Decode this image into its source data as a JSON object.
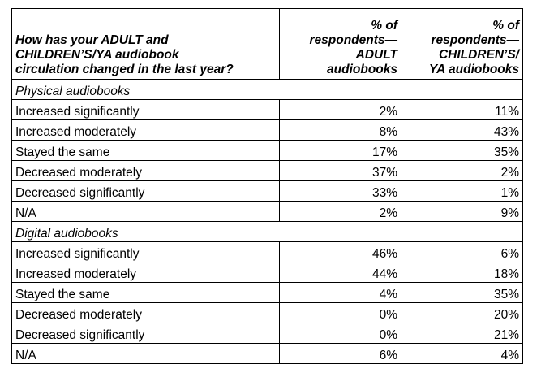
{
  "table": {
    "header": {
      "question_lines": [
        "How has your ADULT and",
        "CHILDREN’S/YA audiobook",
        "circulation changed in the last year?"
      ],
      "adult_lines": [
        "% of",
        "respondents—",
        "ADULT",
        "audiobooks"
      ],
      "children_lines": [
        "% of",
        "respondents—",
        "CHILDREN’S/",
        "YA audiobooks"
      ]
    },
    "sections": [
      {
        "title": "Physical audiobooks",
        "rows": [
          {
            "label": "Increased significantly",
            "adult": "2%",
            "children": "11%"
          },
          {
            "label": "Increased moderately",
            "adult": "8%",
            "children": "43%"
          },
          {
            "label": "Stayed the same",
            "adult": "17%",
            "children": "35%"
          },
          {
            "label": "Decreased moderately",
            "adult": "37%",
            "children": "2%"
          },
          {
            "label": "Decreased significantly",
            "adult": "33%",
            "children": "1%"
          },
          {
            "label": "N/A",
            "adult": "2%",
            "children": "9%"
          }
        ]
      },
      {
        "title": "Digital audiobooks",
        "rows": [
          {
            "label": "Increased significantly",
            "adult": "46%",
            "children": "6%"
          },
          {
            "label": "Increased moderately",
            "adult": "44%",
            "children": "18%"
          },
          {
            "label": "Stayed the same",
            "adult": "4%",
            "children": "35%"
          },
          {
            "label": "Decreased moderately",
            "adult": "0%",
            "children": "20%"
          },
          {
            "label": "Decreased significantly",
            "adult": "0%",
            "children": "21%"
          },
          {
            "label": "N/A",
            "adult": "6%",
            "children": "4%"
          }
        ]
      }
    ]
  }
}
